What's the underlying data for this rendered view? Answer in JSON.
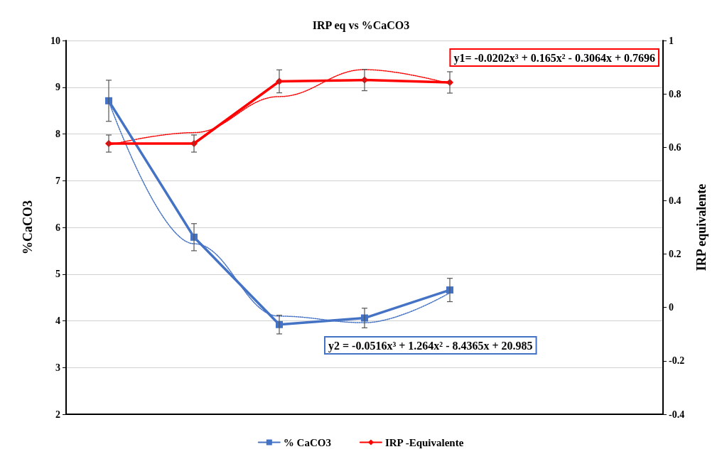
{
  "chart_data": {
    "type": "line",
    "title": "IRP eq vs %CaCO3",
    "ylabel": "%CaCO3",
    "y2label": "IRP equivalente",
    "categories": [
      null,
      null,
      null,
      null,
      null,
      null,
      null
    ],
    "ylim": [
      2,
      10
    ],
    "yticks": [
      2,
      3,
      4,
      5,
      6,
      7,
      8,
      9,
      10
    ],
    "y2lim": [
      -0.4,
      1
    ],
    "y2ticks": [
      -0.4,
      -0.2,
      0,
      0.2,
      0.4,
      0.6,
      0.8,
      1
    ],
    "grid": "y",
    "legend": "bottom",
    "tick_labels": "y",
    "annotations": [
      "y1= -0.0202x³ + 0.165x² - 0.3064x + 0.7696",
      "y2 = -0.0516x³ + 1.264x² - 8.4365x + 20.985"
    ],
    "series": [
      {
        "name": "% CaCO3",
        "color": "#4472c4",
        "marker": "square",
        "line_style": "solid",
        "values": [
          8.71,
          5.79,
          3.92,
          4.06,
          4.66,
          null,
          null
        ],
        "errors": [
          0.44,
          0.29,
          0.2,
          0.21,
          0.25,
          null,
          null
        ]
      },
      {
        "name": "IRP -Equivalente",
        "color": "#ff0000",
        "marker": "diamond",
        "line_style": "solid",
        "axis": "y2",
        "values": [
          0.614,
          0.614,
          0.847,
          0.852,
          0.843,
          null,
          null
        ],
        "errors": [
          0.032,
          0.032,
          0.043,
          0.04,
          0.04,
          null,
          null
        ]
      },
      {
        "color": "#4472c4",
        "marker": "none",
        "line_style": "dotted",
        "values": [
          8.7,
          5.65,
          4.1,
          3.96,
          4.6,
          null,
          null
        ]
      },
      {
        "color": "#ff0000",
        "marker": "none",
        "line_style": "dotted",
        "axis": "y2",
        "values": [
          0.608,
          0.655,
          0.79,
          0.891,
          0.838,
          null,
          null
        ]
      }
    ]
  }
}
